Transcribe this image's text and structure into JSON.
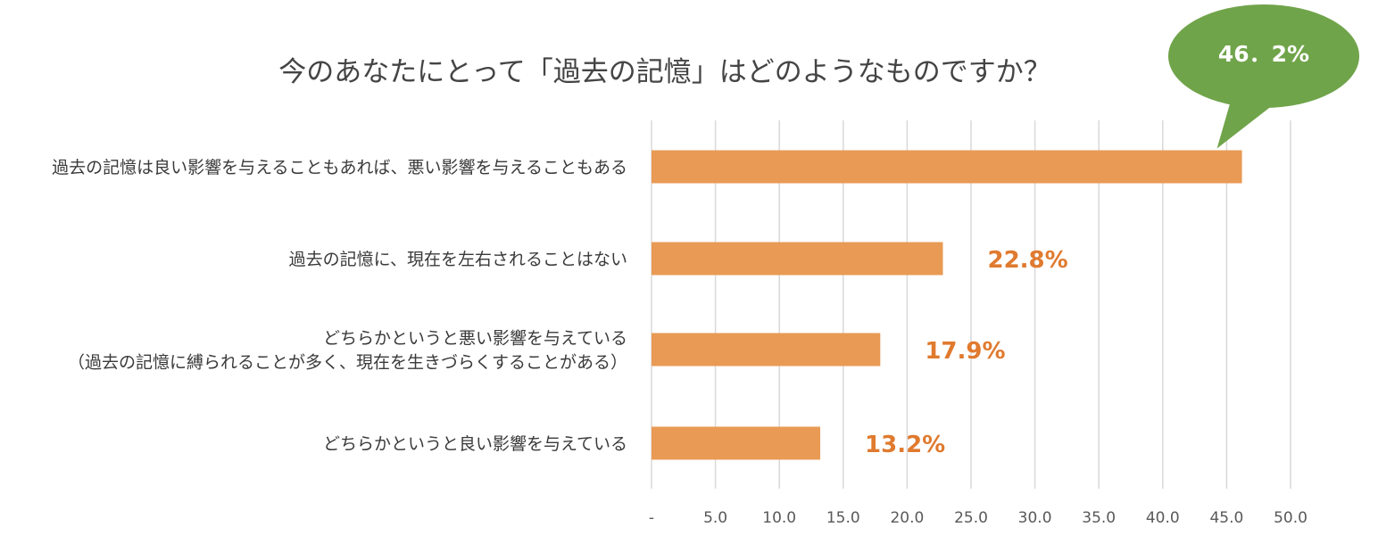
{
  "chart_data": {
    "type": "bar",
    "orientation": "horizontal",
    "title": "今のあなたにとって「過去の記憶」はどのようなものですか？",
    "categories": [
      [
        "過去の記憶は良い影響を与えることもあれば、悪い影響を与えることもある"
      ],
      [
        "過去の記憶に、現在を左右されることはない"
      ],
      [
        "どちらかというと悪い影響を与えている",
        "（過去の記憶に縛られることが多く、現在を生きづらくすることがある）"
      ],
      [
        "どちらかというと良い影響を与えている"
      ]
    ],
    "values": [
      46.2,
      22.8,
      17.9,
      13.2
    ],
    "value_labels": [
      "46．2%",
      "22.8%",
      "17.9%",
      "13.2%"
    ],
    "xlim": [
      0,
      50
    ],
    "ticks": [
      0,
      5,
      10,
      15,
      20,
      25,
      30,
      35,
      40,
      45,
      50
    ],
    "tick_labels": [
      "-",
      "5.0",
      "10.0",
      "15.0",
      "20.0",
      "25.0",
      "30.0",
      "35.0",
      "40.0",
      "45.0",
      "50.0"
    ],
    "grid": "vertical",
    "legend": "none",
    "bar_color": "#E99A54",
    "label_color": "#E07A2E",
    "callout_color": "#70A44A",
    "callout_text_color": "#ffffff",
    "callout_index": 0
  }
}
